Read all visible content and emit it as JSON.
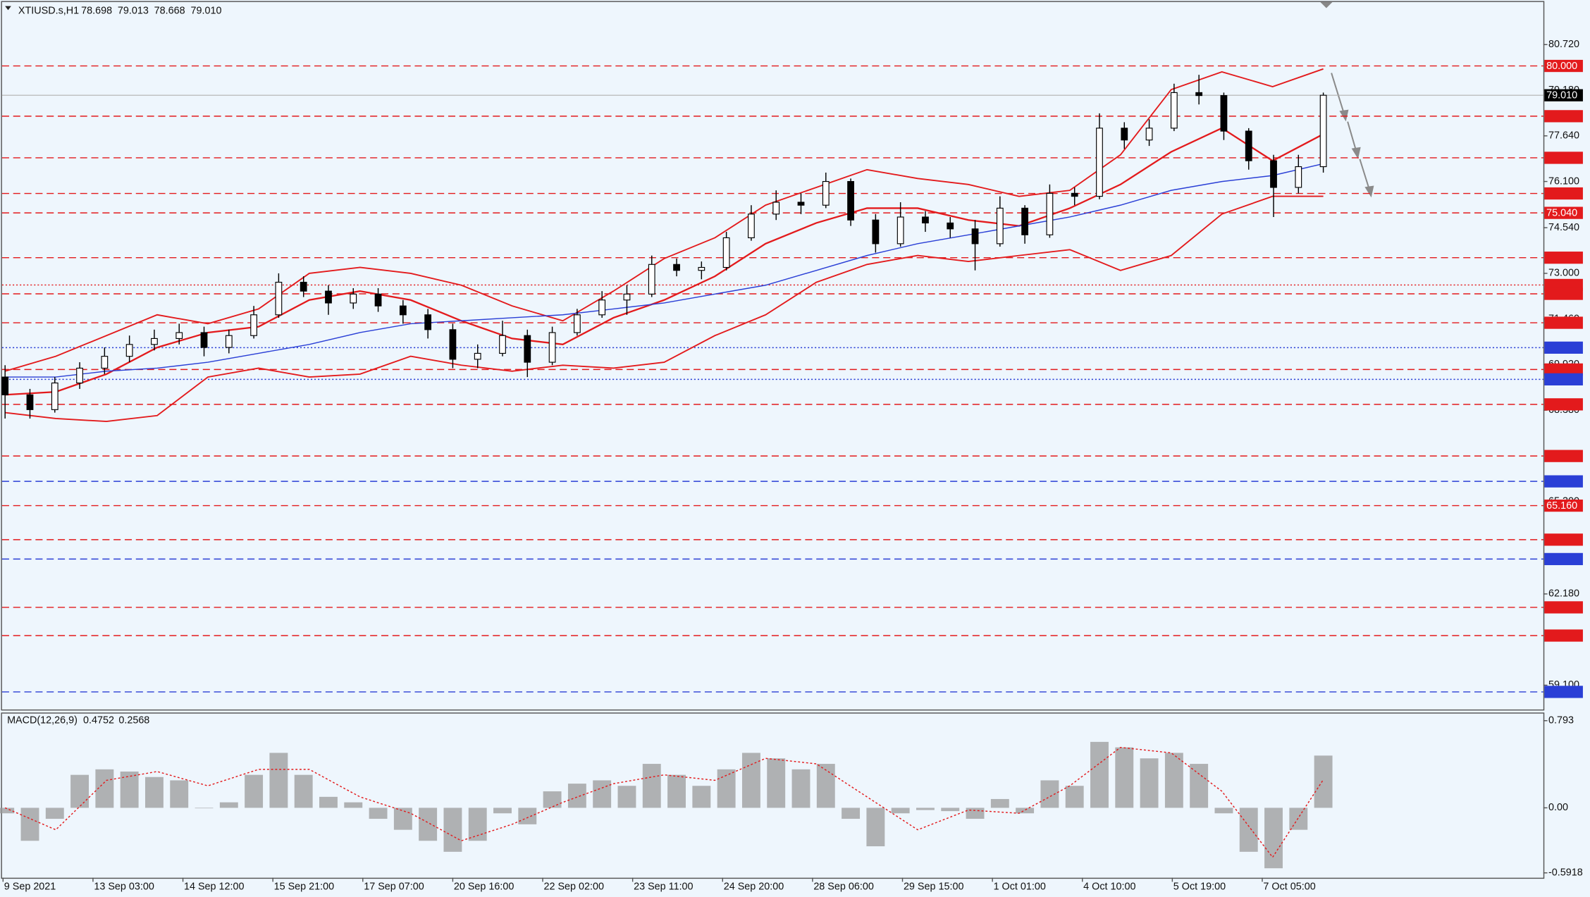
{
  "chart_data": [
    {
      "type": "candlestick",
      "title": "XTIUSD.s,H1",
      "quote": [
        78.698,
        79.013,
        78.668,
        {
          "value": 79.01,
          "label": "79.010"
        }
      ],
      "open": [
        69.5,
        68.9,
        68.4,
        69.3,
        69.8,
        70.2,
        70.6,
        70.8,
        71.0,
        70.5,
        70.9,
        71.6,
        72.7,
        72.4,
        72.0,
        72.3,
        71.9,
        71.6,
        71.1,
        70.1,
        70.3,
        70.9,
        70.0,
        71.0,
        71.6,
        72.1,
        72.3,
        73.3,
        73.1,
        73.2,
        74.2,
        75.0,
        75.4,
        75.3,
        76.1,
        74.8,
        74.0,
        74.9,
        74.7,
        74.5,
        74.0,
        75.2,
        74.3,
        75.7,
        75.6,
        77.9,
        77.5,
        77.9,
        79.1,
        79.0,
        77.8,
        76.8,
        75.9,
        76.6
      ],
      "high": [
        69.9,
        69.1,
        69.5,
        70.0,
        70.5,
        70.9,
        71.1,
        71.3,
        71.2,
        71.1,
        71.9,
        73.0,
        72.9,
        72.6,
        72.5,
        72.5,
        72.1,
        71.8,
        71.3,
        70.6,
        71.4,
        71.1,
        71.2,
        71.8,
        72.4,
        72.6,
        73.6,
        73.5,
        73.4,
        74.4,
        75.3,
        75.8,
        75.7,
        76.4,
        76.2,
        75.0,
        75.4,
        75.1,
        74.9,
        74.8,
        75.6,
        75.3,
        76.0,
        75.9,
        78.4,
        78.1,
        78.2,
        79.4,
        79.7,
        79.1,
        77.9,
        77.0,
        77.0,
        79.1
      ],
      "low": [
        68.1,
        68.1,
        68.3,
        69.1,
        69.6,
        70.0,
        70.4,
        70.6,
        70.2,
        70.3,
        70.8,
        71.5,
        72.2,
        71.6,
        71.8,
        71.7,
        71.3,
        70.8,
        69.8,
        69.8,
        70.2,
        69.5,
        69.9,
        70.9,
        71.5,
        71.6,
        72.2,
        72.9,
        72.8,
        73.1,
        74.1,
        74.8,
        75.0,
        75.2,
        74.6,
        73.7,
        73.9,
        74.4,
        74.2,
        73.1,
        73.9,
        74.0,
        74.2,
        75.3,
        75.5,
        77.2,
        77.3,
        77.8,
        78.7,
        77.5,
        76.5,
        74.9,
        75.7,
        76.4
      ],
      "close": [
        68.9,
        68.4,
        69.3,
        69.8,
        70.2,
        70.6,
        70.8,
        71.0,
        70.5,
        70.9,
        71.6,
        72.7,
        72.4,
        72.0,
        72.3,
        71.9,
        71.6,
        71.1,
        70.1,
        70.3,
        70.9,
        70.0,
        71.0,
        71.6,
        72.1,
        72.3,
        73.3,
        73.1,
        73.2,
        74.2,
        75.0,
        75.4,
        75.3,
        76.1,
        74.8,
        74.0,
        74.9,
        74.7,
        74.5,
        74.0,
        75.2,
        74.3,
        75.7,
        75.6,
        77.9,
        77.5,
        77.9,
        79.1,
        79.0,
        77.8,
        76.8,
        75.9,
        76.6,
        79.01
      ],
      "series": [
        {
          "color": "#e31a1c",
          "width": 1.3,
          "values": [
            69.7,
            70.2,
            70.9,
            71.6,
            71.3,
            71.8,
            73.0,
            73.2,
            73.0,
            72.6,
            71.9,
            71.4,
            72.4,
            73.5,
            74.2,
            75.3,
            75.9,
            76.5,
            76.2,
            76.0,
            75.6,
            75.8,
            77.0,
            79.2,
            79.8,
            79.3,
            79.9
          ]
        },
        {
          "color": "#e31a1c",
          "width": 1.6,
          "values": [
            68.9,
            69.0,
            69.6,
            70.5,
            71.0,
            71.2,
            72.1,
            72.4,
            72.1,
            71.4,
            70.8,
            70.6,
            71.5,
            72.1,
            72.9,
            74.0,
            74.7,
            75.2,
            75.2,
            74.8,
            74.6,
            75.2,
            76.0,
            77.1,
            77.9,
            76.8,
            77.7
          ]
        },
        {
          "color": "#e31a1c",
          "width": 1.3,
          "values": [
            68.3,
            68.1,
            68.0,
            68.2,
            69.5,
            69.8,
            69.5,
            69.6,
            70.2,
            69.9,
            69.7,
            69.9,
            69.8,
            70.0,
            70.9,
            71.6,
            72.7,
            73.3,
            73.6,
            73.4,
            73.6,
            73.8,
            73.1,
            73.6,
            75.0,
            75.6,
            75.6
          ]
        },
        {
          "color": "#2a3fd6",
          "width": 1,
          "values": [
            69.5,
            69.5,
            69.7,
            69.8,
            70.0,
            70.3,
            70.6,
            71.0,
            71.3,
            71.4,
            71.5,
            71.6,
            71.8,
            72.0,
            72.3,
            72.6,
            73.1,
            73.6,
            74.0,
            74.3,
            74.6,
            74.9,
            75.3,
            75.8,
            76.1,
            76.3,
            76.7
          ]
        }
      ],
      "levels": [
        {
          "value": 80.0,
          "label": "80.000",
          "color": "#e31a1c",
          "style": "dashed"
        },
        {
          "value": 78.304,
          "color": "#e31a1c",
          "style": "dashed"
        },
        {
          "value": 76.899,
          "color": "#e31a1c",
          "style": "dashed"
        },
        {
          "value": 75.696,
          "color": "#e31a1c",
          "style": "dashed"
        },
        {
          "value": 75.04,
          "label": "75.040",
          "color": "#e31a1c",
          "style": "dashed"
        },
        {
          "value": 73.529,
          "color": "#e31a1c",
          "style": "dashed"
        },
        {
          "value": 72.607,
          "color": "#e31a1c",
          "style": "dotted"
        },
        {
          "value": 72.308,
          "color": "#e31a1c",
          "style": "dashed"
        },
        {
          "value": 71.332,
          "color": "#e31a1c",
          "style": "dashed"
        },
        {
          "value": 70.492,
          "color": "#2a3fd6",
          "style": "dotted"
        },
        {
          "value": 69.755,
          "color": "#e31a1c",
          "style": "dashed"
        },
        {
          "value": 69.422,
          "color": "#2a3fd6",
          "style": "dotted"
        },
        {
          "value": 68.578,
          "color": "#e31a1c",
          "style": "dashed"
        },
        {
          "value": 66.835,
          "color": "#e31a1c",
          "style": "dashed"
        },
        {
          "value": 65.979,
          "color": "#2a3fd6",
          "style": "dashed"
        },
        {
          "value": 65.16,
          "label": "65.160",
          "color": "#e31a1c",
          "style": "dashed"
        },
        {
          "value": 64.012,
          "color": "#e31a1c",
          "style": "dashed"
        },
        {
          "value": 63.357,
          "color": "#2a3fd6",
          "style": "dashed"
        },
        {
          "value": 61.727,
          "color": "#e31a1c",
          "style": "dashed"
        },
        {
          "value": 60.775,
          "color": "#e31a1c",
          "style": "dashed"
        },
        {
          "value": 58.874,
          "color": "#2a3fd6",
          "style": "dashed"
        }
      ],
      "current_price": {
        "value": 79.01,
        "label": "79.010"
      },
      "ylim": [
        58.28,
        82.225
      ],
      "yticks": [
        {
          "value": 80.72,
          "label": "80.720"
        },
        {
          "value": 79.18,
          "label": "79.180"
        },
        {
          "value": 77.64,
          "label": "77.640"
        },
        {
          "value": 76.1,
          "label": "76.100"
        },
        {
          "value": 74.54,
          "label": "74.540"
        },
        {
          "value": 73.0,
          "label": "73.000"
        },
        {
          "value": 71.46,
          "label": "71.460"
        },
        {
          "value": 69.92,
          "label": "69.920"
        },
        {
          "value": 68.38,
          "label": "68.380"
        },
        {
          "value": 65.3,
          "label": "65.300"
        },
        {
          "value": 62.18,
          "label": "62.180"
        },
        {
          "value": 59.1,
          "label": "59.100"
        }
      ],
      "time_labels": [
        "9 Sep 2021",
        "13 Sep 03:00",
        "14 Sep 12:00",
        "15 Sep 21:00",
        "17 Sep 07:00",
        "20 Sep 16:00",
        "22 Sep 02:00",
        "23 Sep 11:00",
        "24 Sep 20:00",
        "28 Sep 06:00",
        "29 Sep 15:00",
        "1 Oct 01:00",
        "4 Oct 10:00",
        "5 Oct 19:00",
        "7 Oct 05:00"
      ]
    },
    {
      "type": "macd",
      "title": "MACD(12,26,9)",
      "readout": [
        0.4752,
        0.2568
      ],
      "histogram": [
        -0.05,
        -0.3,
        -0.1,
        0.3,
        0.35,
        0.33,
        0.28,
        0.25,
        0.0,
        0.05,
        0.3,
        0.5,
        0.3,
        0.1,
        0.05,
        -0.1,
        -0.2,
        -0.3,
        -0.4,
        -0.3,
        -0.05,
        -0.15,
        0.15,
        0.22,
        0.25,
        0.2,
        0.4,
        0.3,
        0.2,
        0.35,
        0.5,
        0.45,
        0.35,
        0.4,
        -0.1,
        -0.35,
        -0.05,
        -0.02,
        -0.03,
        -0.1,
        0.08,
        -0.05,
        0.25,
        0.2,
        0.6,
        0.55,
        0.45,
        0.5,
        0.4,
        -0.05,
        -0.4,
        -0.55,
        -0.2,
        0.4752
      ],
      "histogram_color": "#9a9a9a",
      "signal": {
        "color": "#e31a1c",
        "values": [
          0.0,
          -0.2,
          0.25,
          0.33,
          0.2,
          0.35,
          0.35,
          0.1,
          -0.05,
          -0.3,
          -0.15,
          0.05,
          0.22,
          0.3,
          0.25,
          0.45,
          0.4,
          0.1,
          -0.2,
          -0.02,
          -0.05,
          0.2,
          0.55,
          0.5,
          0.15,
          -0.45,
          0.2568
        ]
      },
      "ylim": [
        -0.627,
        0.867
      ],
      "yticks": [
        0.793,
        {
          "value": 0,
          "label": "0.00"
        },
        -0.5918
      ]
    }
  ]
}
